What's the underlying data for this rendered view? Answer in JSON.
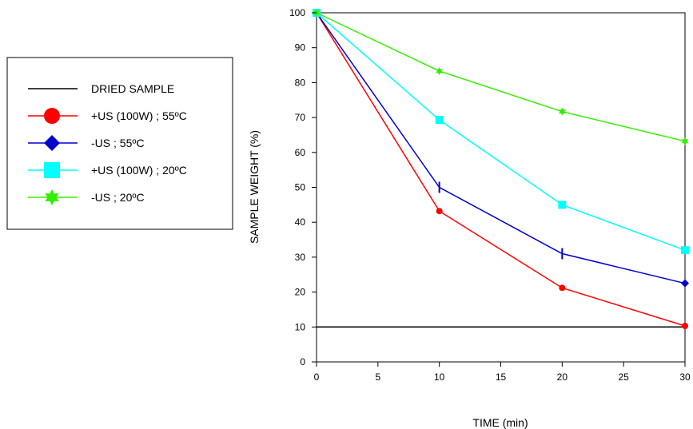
{
  "chart_data": {
    "type": "line",
    "xlabel": "TIME (min)",
    "ylabel": "SAMPLE WEIGHT (%)",
    "xlim": [
      0,
      30
    ],
    "ylim": [
      0,
      100
    ],
    "xticks": [
      0,
      5,
      10,
      15,
      20,
      25,
      30
    ],
    "yticks": [
      0,
      10,
      20,
      30,
      40,
      50,
      60,
      70,
      80,
      90,
      100
    ],
    "grid": false,
    "legend_position": "left",
    "x": [
      0,
      10,
      20,
      30
    ],
    "series": [
      {
        "name": "DRIED SAMPLE",
        "color": "#000000",
        "marker": "none",
        "values": [
          10,
          10,
          10,
          10
        ]
      },
      {
        "name": "+US (100W) ; 55ºC",
        "color": "#ff0000",
        "marker": "circle",
        "values": [
          100,
          43.2,
          21.2,
          10.3
        ]
      },
      {
        "name": "-US ; 55ºC",
        "color": "#0000cc",
        "marker": "diamond",
        "values": [
          100,
          50,
          31,
          22.5
        ]
      },
      {
        "name": "+US (100W) ; 20ºC",
        "color": "#00ffff",
        "marker": "square",
        "values": [
          100,
          69.3,
          45,
          32
        ]
      },
      {
        "name": "-US ; 20ºC",
        "color": "#33ee00",
        "marker": "star",
        "values": [
          100,
          83.3,
          71.7,
          63.2
        ]
      }
    ]
  }
}
